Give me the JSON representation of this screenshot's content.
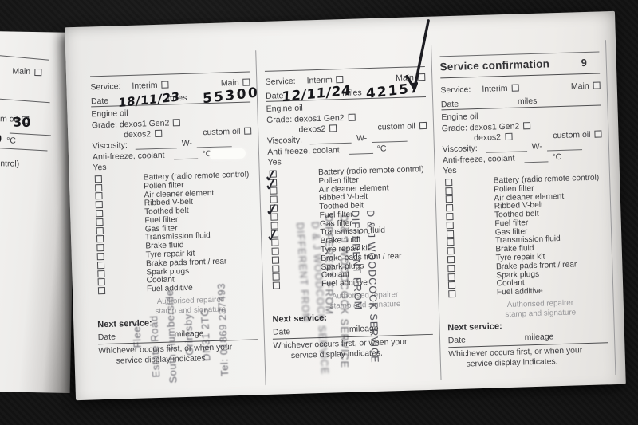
{
  "prev_page": {
    "main_label": "Main",
    "custom_oil_fragment": "om oil",
    "hand_viscosity": "30",
    "hand_temp": "0",
    "deg_c": "°C",
    "control_fragment": "control)"
  },
  "booklet": {
    "header": {
      "title": "Service confirmation",
      "page_number": "9"
    },
    "labels": {
      "service": "Service:",
      "interim": "Interim",
      "main": "Main",
      "date": "Date",
      "miles": "miles",
      "engine_oil": "Engine oil",
      "grade": "Grade: dexos1 Gen2",
      "dexos2": "dexos2",
      "custom_oil": "custom oil",
      "viscosity": "Viscosity:",
      "w_prefix": "W-",
      "antifreeze": "Anti-freeze, coolant",
      "deg_c": "°C",
      "yes": "Yes",
      "authorised_line1": "Authorised repairer",
      "authorised_line2": "stamp and signature",
      "next_service": "Next service:",
      "mileage": "mileage",
      "footer_line1": "Whichever occurs first, or when your",
      "footer_line2": "service display indicates."
    },
    "checklist": [
      "Battery (radio remote control)",
      "Pollen filter",
      "Air cleaner element",
      "Ribbed V-belt",
      "Toothed belt",
      "Fuel filter",
      "Gas filter",
      "Transmission fluid",
      "Brake fluid",
      "Tyre repair kit",
      "Brake pads front / rear",
      "Spark plugs",
      "Coolant",
      "Fuel additive"
    ],
    "entries": [
      {
        "date": "18/11/23",
        "miles": "55300",
        "main_ticked": false,
        "ticked_items": [],
        "stamp": {
          "orientation": "rotated-ccw",
          "lines": [
            "Fleet",
            "Estate Road",
            "South Humberside",
            "Grimsby",
            "DN31 2TG",
            "Tel: 01869 237493"
          ]
        }
      },
      {
        "date": "12/11/24",
        "miles": "42157",
        "main_ticked": true,
        "ticked_items": [
          1,
          2,
          5,
          8
        ],
        "stamp": {
          "orientation": "rotated-cw",
          "lines": [
            "D & J WOODCOCK SERVICE",
            "DIFFERENT FROM"
          ]
        }
      },
      {
        "date": "",
        "miles": "",
        "main_ticked": false,
        "ticked_items": [],
        "stamp": null
      }
    ]
  },
  "colors": {
    "background": "#111111",
    "paper": "#f2f1ef",
    "print_text": "#3e3e41",
    "handwriting_ink": "#17171b",
    "stamp_ink": "#3c3c4a"
  }
}
